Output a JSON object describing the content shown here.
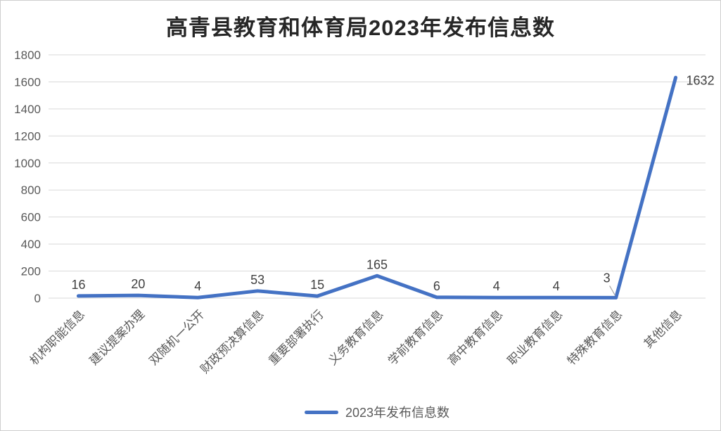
{
  "chart_data": {
    "type": "line",
    "title": "高青县教育和体育局2023年发布信息数",
    "categories": [
      "机构职能信息",
      "建议提案办理",
      "双随机一公开",
      "财政预决算信息",
      "重要部署执行",
      "义务教育信息",
      "学前教育信息",
      "高中教育信息",
      "职业教育信息",
      "特殊教育信息",
      "其他信息"
    ],
    "values": [
      16,
      20,
      4,
      53,
      15,
      165,
      6,
      4,
      4,
      3,
      1632
    ],
    "series": [
      {
        "name": "2023年发布信息数",
        "values": [
          16,
          20,
          4,
          53,
          15,
          165,
          6,
          4,
          4,
          3,
          1632
        ]
      }
    ],
    "series_name": "2023年发布信息数",
    "xlabel": "",
    "ylabel": "",
    "ylim": [
      0,
      1800
    ],
    "ytick_step": 200,
    "ytick_labels": [
      "0",
      "200",
      "400",
      "600",
      "800",
      "1000",
      "1200",
      "1400",
      "1600",
      "1800"
    ],
    "grid": true,
    "legend_position": "bottom",
    "data_labels_shown": true,
    "line_color": "#4472C4",
    "gridline_color": "#D9D9D9",
    "axis_label_color": "#595959",
    "data_label_color": "#404040",
    "leader_line_color": "#A6A6A6",
    "title_color": "#262626"
  }
}
